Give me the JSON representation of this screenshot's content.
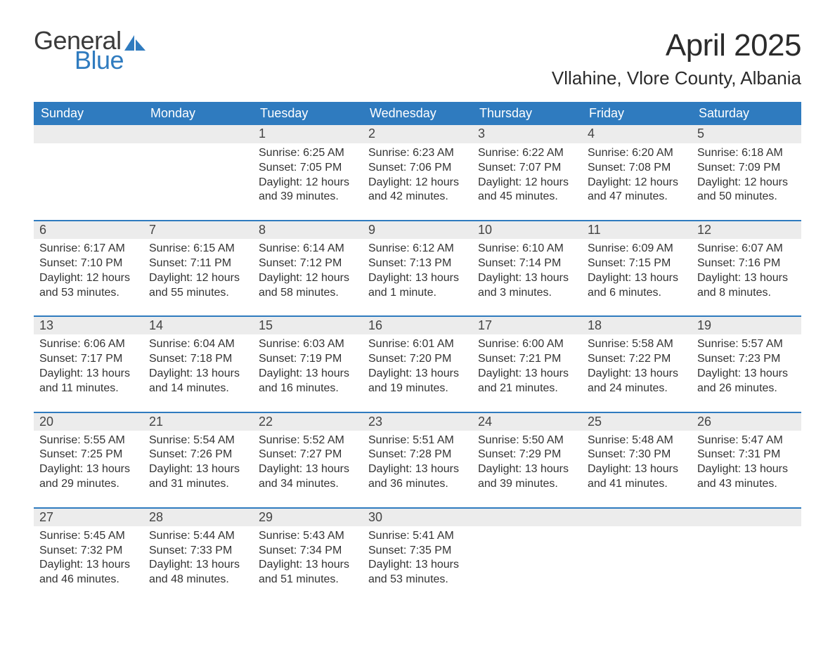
{
  "logo": {
    "text1": "General",
    "text2": "Blue"
  },
  "title": "April 2025",
  "location": "Vllahine, Vlore County, Albania",
  "colors": {
    "brand_blue": "#2f7bbf",
    "band_gray": "#ececec",
    "text": "#333333",
    "background": "#ffffff"
  },
  "typography": {
    "title_fontsize": 44,
    "location_fontsize": 26,
    "dayheader_fontsize": 18,
    "daynum_fontsize": 18,
    "body_fontsize": 16,
    "font_family": "Segoe UI"
  },
  "day_headers": [
    "Sunday",
    "Monday",
    "Tuesday",
    "Wednesday",
    "Thursday",
    "Friday",
    "Saturday"
  ],
  "weeks": [
    [
      {
        "num": "",
        "sunrise": "",
        "sunset": "",
        "daylight": ""
      },
      {
        "num": "",
        "sunrise": "",
        "sunset": "",
        "daylight": ""
      },
      {
        "num": "1",
        "sunrise": "Sunrise: 6:25 AM",
        "sunset": "Sunset: 7:05 PM",
        "daylight": "Daylight: 12 hours and 39 minutes."
      },
      {
        "num": "2",
        "sunrise": "Sunrise: 6:23 AM",
        "sunset": "Sunset: 7:06 PM",
        "daylight": "Daylight: 12 hours and 42 minutes."
      },
      {
        "num": "3",
        "sunrise": "Sunrise: 6:22 AM",
        "sunset": "Sunset: 7:07 PM",
        "daylight": "Daylight: 12 hours and 45 minutes."
      },
      {
        "num": "4",
        "sunrise": "Sunrise: 6:20 AM",
        "sunset": "Sunset: 7:08 PM",
        "daylight": "Daylight: 12 hours and 47 minutes."
      },
      {
        "num": "5",
        "sunrise": "Sunrise: 6:18 AM",
        "sunset": "Sunset: 7:09 PM",
        "daylight": "Daylight: 12 hours and 50 minutes."
      }
    ],
    [
      {
        "num": "6",
        "sunrise": "Sunrise: 6:17 AM",
        "sunset": "Sunset: 7:10 PM",
        "daylight": "Daylight: 12 hours and 53 minutes."
      },
      {
        "num": "7",
        "sunrise": "Sunrise: 6:15 AM",
        "sunset": "Sunset: 7:11 PM",
        "daylight": "Daylight: 12 hours and 55 minutes."
      },
      {
        "num": "8",
        "sunrise": "Sunrise: 6:14 AM",
        "sunset": "Sunset: 7:12 PM",
        "daylight": "Daylight: 12 hours and 58 minutes."
      },
      {
        "num": "9",
        "sunrise": "Sunrise: 6:12 AM",
        "sunset": "Sunset: 7:13 PM",
        "daylight": "Daylight: 13 hours and 1 minute."
      },
      {
        "num": "10",
        "sunrise": "Sunrise: 6:10 AM",
        "sunset": "Sunset: 7:14 PM",
        "daylight": "Daylight: 13 hours and 3 minutes."
      },
      {
        "num": "11",
        "sunrise": "Sunrise: 6:09 AM",
        "sunset": "Sunset: 7:15 PM",
        "daylight": "Daylight: 13 hours and 6 minutes."
      },
      {
        "num": "12",
        "sunrise": "Sunrise: 6:07 AM",
        "sunset": "Sunset: 7:16 PM",
        "daylight": "Daylight: 13 hours and 8 minutes."
      }
    ],
    [
      {
        "num": "13",
        "sunrise": "Sunrise: 6:06 AM",
        "sunset": "Sunset: 7:17 PM",
        "daylight": "Daylight: 13 hours and 11 minutes."
      },
      {
        "num": "14",
        "sunrise": "Sunrise: 6:04 AM",
        "sunset": "Sunset: 7:18 PM",
        "daylight": "Daylight: 13 hours and 14 minutes."
      },
      {
        "num": "15",
        "sunrise": "Sunrise: 6:03 AM",
        "sunset": "Sunset: 7:19 PM",
        "daylight": "Daylight: 13 hours and 16 minutes."
      },
      {
        "num": "16",
        "sunrise": "Sunrise: 6:01 AM",
        "sunset": "Sunset: 7:20 PM",
        "daylight": "Daylight: 13 hours and 19 minutes."
      },
      {
        "num": "17",
        "sunrise": "Sunrise: 6:00 AM",
        "sunset": "Sunset: 7:21 PM",
        "daylight": "Daylight: 13 hours and 21 minutes."
      },
      {
        "num": "18",
        "sunrise": "Sunrise: 5:58 AM",
        "sunset": "Sunset: 7:22 PM",
        "daylight": "Daylight: 13 hours and 24 minutes."
      },
      {
        "num": "19",
        "sunrise": "Sunrise: 5:57 AM",
        "sunset": "Sunset: 7:23 PM",
        "daylight": "Daylight: 13 hours and 26 minutes."
      }
    ],
    [
      {
        "num": "20",
        "sunrise": "Sunrise: 5:55 AM",
        "sunset": "Sunset: 7:25 PM",
        "daylight": "Daylight: 13 hours and 29 minutes."
      },
      {
        "num": "21",
        "sunrise": "Sunrise: 5:54 AM",
        "sunset": "Sunset: 7:26 PM",
        "daylight": "Daylight: 13 hours and 31 minutes."
      },
      {
        "num": "22",
        "sunrise": "Sunrise: 5:52 AM",
        "sunset": "Sunset: 7:27 PM",
        "daylight": "Daylight: 13 hours and 34 minutes."
      },
      {
        "num": "23",
        "sunrise": "Sunrise: 5:51 AM",
        "sunset": "Sunset: 7:28 PM",
        "daylight": "Daylight: 13 hours and 36 minutes."
      },
      {
        "num": "24",
        "sunrise": "Sunrise: 5:50 AM",
        "sunset": "Sunset: 7:29 PM",
        "daylight": "Daylight: 13 hours and 39 minutes."
      },
      {
        "num": "25",
        "sunrise": "Sunrise: 5:48 AM",
        "sunset": "Sunset: 7:30 PM",
        "daylight": "Daylight: 13 hours and 41 minutes."
      },
      {
        "num": "26",
        "sunrise": "Sunrise: 5:47 AM",
        "sunset": "Sunset: 7:31 PM",
        "daylight": "Daylight: 13 hours and 43 minutes."
      }
    ],
    [
      {
        "num": "27",
        "sunrise": "Sunrise: 5:45 AM",
        "sunset": "Sunset: 7:32 PM",
        "daylight": "Daylight: 13 hours and 46 minutes."
      },
      {
        "num": "28",
        "sunrise": "Sunrise: 5:44 AM",
        "sunset": "Sunset: 7:33 PM",
        "daylight": "Daylight: 13 hours and 48 minutes."
      },
      {
        "num": "29",
        "sunrise": "Sunrise: 5:43 AM",
        "sunset": "Sunset: 7:34 PM",
        "daylight": "Daylight: 13 hours and 51 minutes."
      },
      {
        "num": "30",
        "sunrise": "Sunrise: 5:41 AM",
        "sunset": "Sunset: 7:35 PM",
        "daylight": "Daylight: 13 hours and 53 minutes."
      },
      {
        "num": "",
        "sunrise": "",
        "sunset": "",
        "daylight": ""
      },
      {
        "num": "",
        "sunrise": "",
        "sunset": "",
        "daylight": ""
      },
      {
        "num": "",
        "sunrise": "",
        "sunset": "",
        "daylight": ""
      }
    ]
  ]
}
